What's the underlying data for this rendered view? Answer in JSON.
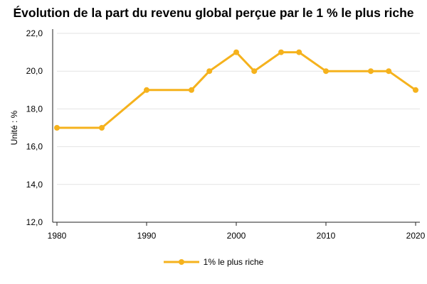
{
  "chart_data": {
    "type": "line",
    "title": "Évolution de la part du revenu global perçue par le 1 % le plus riche",
    "ylabel": "Unité : %",
    "xlabel": "",
    "xlim": [
      1980,
      2020
    ],
    "ylim": [
      12,
      22
    ],
    "x_ticks": [
      "1980",
      "1990",
      "2000",
      "2010",
      "2020"
    ],
    "y_ticks": [
      "12,0",
      "14,0",
      "16,0",
      "18,0",
      "20,0",
      "22,0"
    ],
    "grid": "horizontal",
    "legend_position": "bottom",
    "series": [
      {
        "name": "1% le plus riche",
        "color": "#F5B21D",
        "x": [
          1980,
          1985,
          1990,
          1995,
          1997,
          2000,
          2002,
          2005,
          2007,
          2010,
          2015,
          2017,
          2020
        ],
        "y": [
          17,
          17,
          19,
          19,
          20,
          21,
          20,
          21,
          21,
          20,
          20,
          20,
          19
        ]
      }
    ]
  }
}
